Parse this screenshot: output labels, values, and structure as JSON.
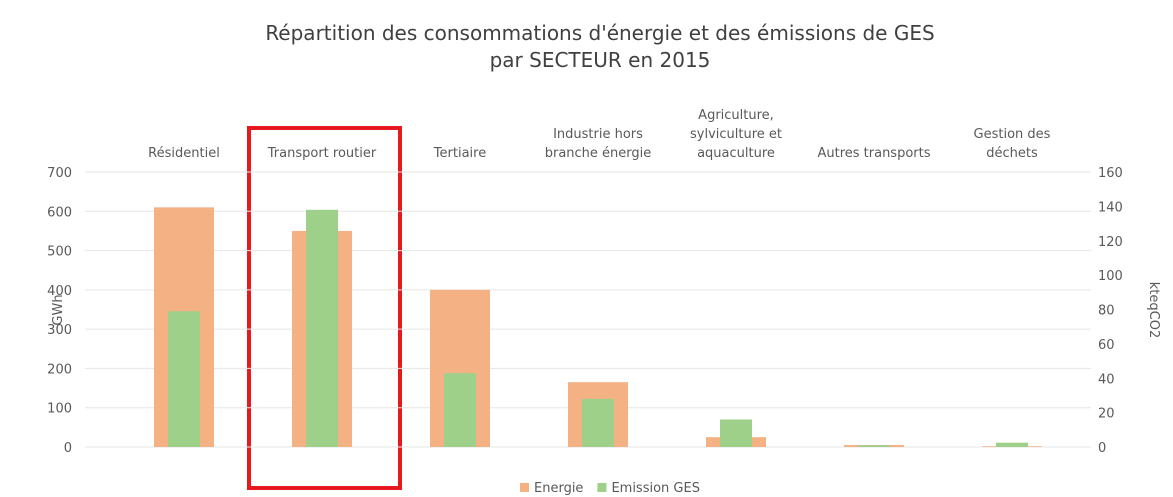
{
  "chart_data": {
    "type": "bar",
    "title": "Répartition des consommations d'énergie et des émissions de GES\npar SECTEUR en 2015",
    "categories": [
      "Résidentiel",
      "Transport routier",
      "Tertiaire",
      "Industrie hors\nbranche énergie",
      "Agriculture,\nsylviculture et\naquaculture",
      "Autres transports",
      "Gestion des\ndéchets"
    ],
    "series": [
      {
        "name": "Energie",
        "color": "#f4b183",
        "values": [
          610,
          550,
          400,
          165,
          25,
          5,
          2
        ]
      },
      {
        "name": "Emission GES",
        "color": "#9fd08a",
        "axis": "y2",
        "values": [
          79,
          138,
          43,
          28,
          16,
          1,
          2.5
        ]
      }
    ],
    "ylabel": "GWh",
    "y2label": "kteqCO2",
    "ylim": [
      0,
      700
    ],
    "yticks": [
      0,
      100,
      200,
      300,
      400,
      500,
      600,
      700
    ],
    "y2lim": [
      0,
      160
    ],
    "y2ticks": [
      0,
      20,
      40,
      60,
      80,
      100,
      120,
      140,
      160
    ],
    "grid": true,
    "legend": "bottom"
  }
}
